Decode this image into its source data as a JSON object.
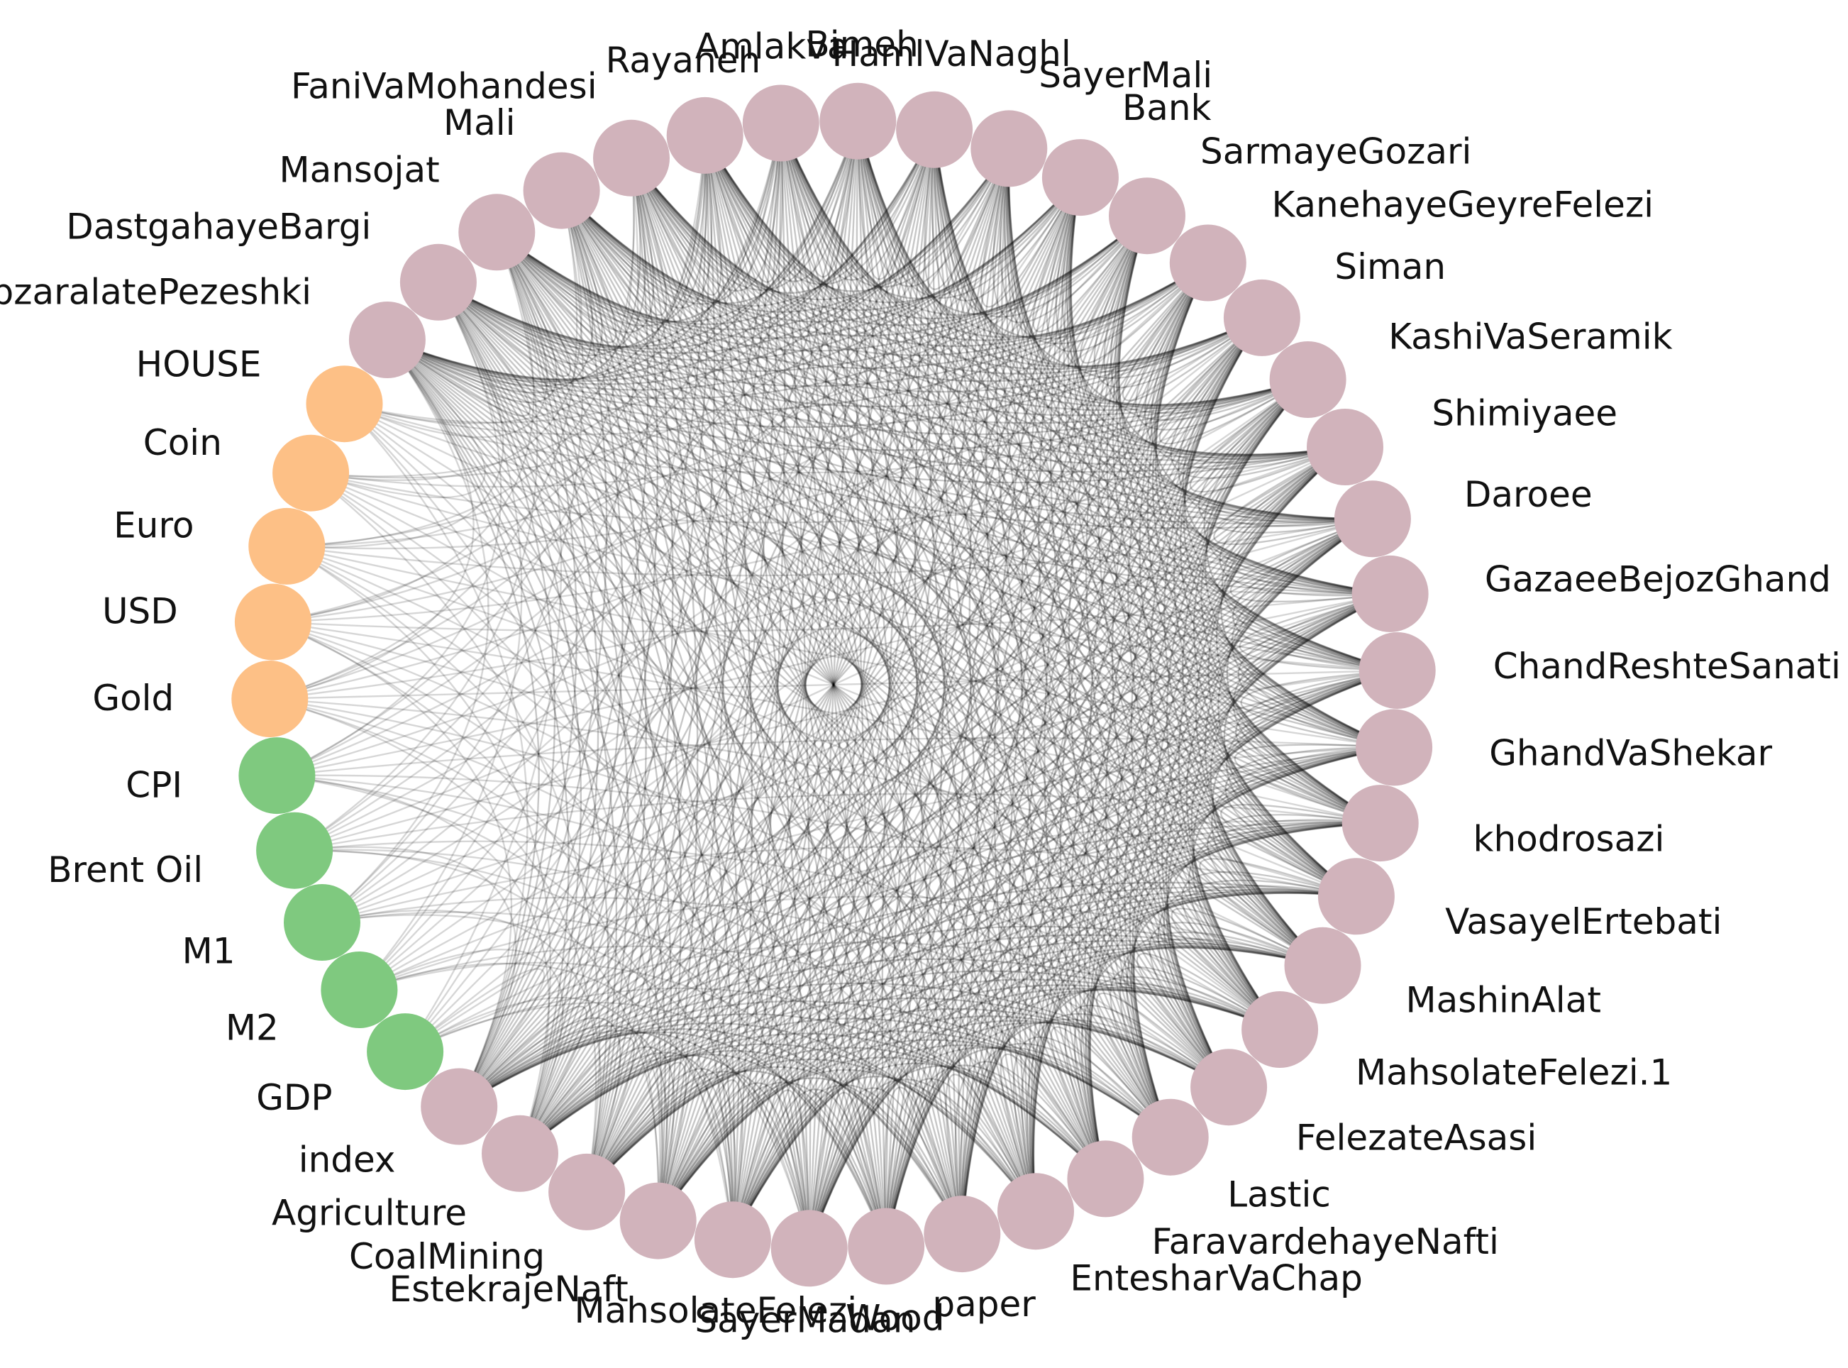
{
  "nodes": [
    {
      "label": "index",
      "group": "sector"
    },
    {
      "label": "Agriculture",
      "group": "sector"
    },
    {
      "label": "CoalMining",
      "group": "sector"
    },
    {
      "label": "EstekrajeNaft",
      "group": "sector"
    },
    {
      "label": "MahsolateFelezi",
      "group": "sector"
    },
    {
      "label": "SayerMadan",
      "group": "sector"
    },
    {
      "label": "Wood",
      "group": "sector"
    },
    {
      "label": "paper",
      "group": "sector"
    },
    {
      "label": "EntesharVaChap",
      "group": "sector"
    },
    {
      "label": "FaravardehayeNafti",
      "group": "sector"
    },
    {
      "label": "Lastic",
      "group": "sector"
    },
    {
      "label": "FelezateAsasi",
      "group": "sector"
    },
    {
      "label": "MahsolateFelezi.1",
      "group": "sector"
    },
    {
      "label": "MashinAlat",
      "group": "sector"
    },
    {
      "label": "VasayelErtebati",
      "group": "sector"
    },
    {
      "label": "khodrosazi",
      "group": "sector"
    },
    {
      "label": "GhandVaShekar",
      "group": "sector"
    },
    {
      "label": "ChandReshteSanati",
      "group": "sector"
    },
    {
      "label": "GazaeeBejozGhand",
      "group": "sector"
    },
    {
      "label": "Daroee",
      "group": "sector"
    },
    {
      "label": "Shimiyaee",
      "group": "sector"
    },
    {
      "label": "KashiVaSeramik",
      "group": "sector"
    },
    {
      "label": "Siman",
      "group": "sector"
    },
    {
      "label": "KanehayeGeyreFelezi",
      "group": "sector"
    },
    {
      "label": "SarmayeGozari",
      "group": "sector"
    },
    {
      "label": "Bank",
      "group": "sector"
    },
    {
      "label": "SayerMali",
      "group": "sector"
    },
    {
      "label": "HamlVaNaghl",
      "group": "sector"
    },
    {
      "label": "Bimeh",
      "group": "sector"
    },
    {
      "label": "Amlakva",
      "group": "sector"
    },
    {
      "label": "Rayaneh",
      "group": "sector"
    },
    {
      "label": "FaniVaMohandesi",
      "group": "sector"
    },
    {
      "label": "Mali",
      "group": "sector"
    },
    {
      "label": "Mansojat",
      "group": "sector"
    },
    {
      "label": "DastgahayeBargi",
      "group": "sector"
    },
    {
      "label": "AbzaralatePezeshki",
      "group": "sector"
    },
    {
      "label": "HOUSE",
      "group": "asset"
    },
    {
      "label": "Coin",
      "group": "asset"
    },
    {
      "label": "Euro",
      "group": "asset"
    },
    {
      "label": "USD",
      "group": "asset"
    },
    {
      "label": "Gold",
      "group": "asset"
    },
    {
      "label": "CPI",
      "group": "macro"
    },
    {
      "label": "Brent Oil",
      "group": "macro"
    },
    {
      "label": "M1",
      "group": "macro"
    },
    {
      "label": "M2",
      "group": "macro"
    },
    {
      "label": "GDP",
      "group": "macro"
    }
  ],
  "colors": {
    "sector": "#d1b3bb",
    "asset": "#fdc086",
    "macro": "#7fc97f",
    "edge": "#000000"
  }
}
